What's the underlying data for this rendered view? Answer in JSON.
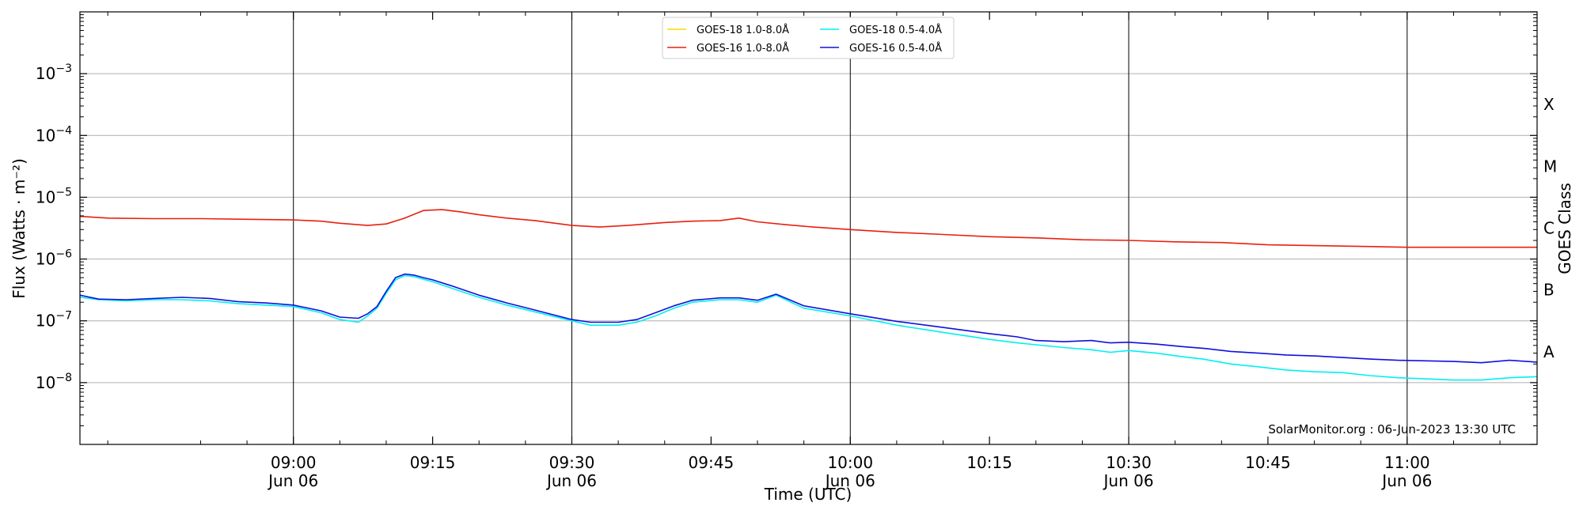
{
  "chart_data": {
    "type": "line",
    "xlabel": "Time (UTC)",
    "ylabel": "Flux (Watts · m⁻²)",
    "ylabel_right": "GOES Class",
    "y_scale": "log",
    "ylim": [
      1e-09,
      0.01
    ],
    "xlim": [
      "2023-06-06 08:37",
      "2023-06-06 11:14"
    ],
    "y_ticks": [
      {
        "value": 1e-08,
        "base": "10",
        "exp": "−8"
      },
      {
        "value": 1e-07,
        "base": "10",
        "exp": "−7"
      },
      {
        "value": 1e-06,
        "base": "10",
        "exp": "−6"
      },
      {
        "value": 1e-05,
        "base": "10",
        "exp": "−5"
      },
      {
        "value": 0.0001,
        "base": "10",
        "exp": "−4"
      },
      {
        "value": 0.001,
        "base": "10",
        "exp": "−3"
      }
    ],
    "x_ticks": [
      {
        "t": "09:00",
        "label": "09:00",
        "sub": "Jun 06",
        "major": true
      },
      {
        "t": "09:15",
        "label": "09:15",
        "sub": "",
        "major": false
      },
      {
        "t": "09:30",
        "label": "09:30",
        "sub": "Jun 06",
        "major": true
      },
      {
        "t": "09:45",
        "label": "09:45",
        "sub": "",
        "major": false
      },
      {
        "t": "10:00",
        "label": "10:00",
        "sub": "Jun 06",
        "major": true
      },
      {
        "t": "10:15",
        "label": "10:15",
        "sub": "",
        "major": false
      },
      {
        "t": "10:30",
        "label": "10:30",
        "sub": "Jun 06",
        "major": true
      },
      {
        "t": "10:45",
        "label": "10:45",
        "sub": "",
        "major": false
      },
      {
        "t": "11:00",
        "label": "11:00",
        "sub": "Jun 06",
        "major": true
      }
    ],
    "goes_classes": [
      {
        "label": "A",
        "value": 3.16e-08
      },
      {
        "label": "B",
        "value": 3.16e-07
      },
      {
        "label": "C",
        "value": 3.16e-06
      },
      {
        "label": "M",
        "value": 3.16e-05
      },
      {
        "label": "X",
        "value": 0.000316
      }
    ],
    "grid": "horizontal at decades; vertical lines at 09:00, 09:30, 10:00, 10:30, 11:00",
    "legend_placement": "top-center",
    "annotation": "SolarMonitor.org : 06-Jun-2023 13:30 UTC",
    "series": [
      {
        "name": "GOES-18 1.0-8.0Å",
        "color": "#ffd700",
        "x": [],
        "y": []
      },
      {
        "name": "GOES-16 1.0-8.0Å",
        "color": "#e8200e",
        "x": [
          "08:37",
          "08:40",
          "08:45",
          "08:50",
          "08:55",
          "09:00",
          "09:03",
          "09:05",
          "09:08",
          "09:10",
          "09:12",
          "09:14",
          "09:16",
          "09:18",
          "09:20",
          "09:23",
          "09:26",
          "09:30",
          "09:33",
          "09:36",
          "09:40",
          "09:43",
          "09:46",
          "09:48",
          "09:50",
          "09:53",
          "09:56",
          "10:00",
          "10:05",
          "10:10",
          "10:15",
          "10:20",
          "10:25",
          "10:30",
          "10:35",
          "10:40",
          "10:45",
          "10:50",
          "10:55",
          "11:00",
          "11:05",
          "11:10",
          "11:14"
        ],
        "y": [
          4.9e-06,
          4.6e-06,
          4.5e-06,
          4.5e-06,
          4.4e-06,
          4.3e-06,
          4.1e-06,
          3.8e-06,
          3.5e-06,
          3.7e-06,
          4.6e-06,
          6.1e-06,
          6.3e-06,
          5.8e-06,
          5.2e-06,
          4.6e-06,
          4.2e-06,
          3.5e-06,
          3.3e-06,
          3.5e-06,
          3.9e-06,
          4.1e-06,
          4.2e-06,
          4.6e-06,
          4e-06,
          3.6e-06,
          3.3e-06,
          3e-06,
          2.7e-06,
          2.5e-06,
          2.3e-06,
          2.2e-06,
          2.05e-06,
          2e-06,
          1.9e-06,
          1.85e-06,
          1.7e-06,
          1.65e-06,
          1.6e-06,
          1.55e-06,
          1.55e-06,
          1.55e-06,
          1.55e-06
        ]
      },
      {
        "name": "GOES-18 0.5-4.0Å",
        "color": "#00f0f0",
        "x": [
          "08:37",
          "08:39",
          "08:42",
          "08:45",
          "08:48",
          "08:51",
          "08:54",
          "08:57",
          "09:00",
          "09:03",
          "09:05",
          "09:07",
          "09:08",
          "09:09",
          "09:10",
          "09:11",
          "09:12",
          "09:13",
          "09:14",
          "09:15",
          "09:17",
          "09:20",
          "09:23",
          "09:26",
          "09:30",
          "09:32",
          "09:35",
          "09:37",
          "09:39",
          "09:41",
          "09:43",
          "09:46",
          "09:48",
          "09:50",
          "09:52",
          "09:55",
          "10:00",
          "10:05",
          "10:10",
          "10:15",
          "10:18",
          "10:20",
          "10:23",
          "10:26",
          "10:28",
          "10:30",
          "10:33",
          "10:36",
          "10:38",
          "10:41",
          "10:44",
          "10:47",
          "10:50",
          "10:53",
          "10:56",
          "10:59",
          "11:02",
          "11:05",
          "11:08",
          "11:11",
          "11:14"
        ],
        "y": [
          2.4e-07,
          2.2e-07,
          2.1e-07,
          2.2e-07,
          2.2e-07,
          2.1e-07,
          1.9e-07,
          1.8e-07,
          1.7e-07,
          1.35e-07,
          1.05e-07,
          9.5e-08,
          1.2e-07,
          1.6e-07,
          2.8e-07,
          4.6e-07,
          5.4e-07,
          5.2e-07,
          4.7e-07,
          4.3e-07,
          3.4e-07,
          2.4e-07,
          1.8e-07,
          1.4e-07,
          1e-07,
          8.5e-08,
          8.5e-08,
          9.5e-08,
          1.2e-07,
          1.6e-07,
          2e-07,
          2.2e-07,
          2.2e-07,
          2e-07,
          2.6e-07,
          1.6e-07,
          1.2e-07,
          8.5e-08,
          6.5e-08,
          5e-08,
          4.4e-08,
          4.1e-08,
          3.7e-08,
          3.4e-08,
          3.1e-08,
          3.3e-08,
          3e-08,
          2.6e-08,
          2.4e-08,
          2e-08,
          1.8e-08,
          1.6e-08,
          1.5e-08,
          1.45e-08,
          1.3e-08,
          1.2e-08,
          1.15e-08,
          1.1e-08,
          1.1e-08,
          1.2e-08,
          1.25e-08
        ]
      },
      {
        "name": "GOES-16 0.5-4.0Å",
        "color": "#1010dd",
        "x": [
          "08:37",
          "08:39",
          "08:42",
          "08:45",
          "08:48",
          "08:51",
          "08:54",
          "08:57",
          "09:00",
          "09:03",
          "09:05",
          "09:07",
          "09:08",
          "09:09",
          "09:10",
          "09:11",
          "09:12",
          "09:13",
          "09:14",
          "09:15",
          "09:17",
          "09:20",
          "09:23",
          "09:26",
          "09:30",
          "09:32",
          "09:35",
          "09:37",
          "09:39",
          "09:41",
          "09:43",
          "09:46",
          "09:48",
          "09:50",
          "09:52",
          "09:55",
          "10:00",
          "10:05",
          "10:10",
          "10:15",
          "10:18",
          "10:20",
          "10:23",
          "10:26",
          "10:28",
          "10:30",
          "10:33",
          "10:36",
          "10:38",
          "10:41",
          "10:44",
          "10:47",
          "10:50",
          "10:53",
          "10:56",
          "10:59",
          "11:02",
          "11:05",
          "11:08",
          "11:11",
          "11:14"
        ],
        "y": [
          2.6e-07,
          2.25e-07,
          2.2e-07,
          2.3e-07,
          2.4e-07,
          2.3e-07,
          2.05e-07,
          1.95e-07,
          1.8e-07,
          1.45e-07,
          1.15e-07,
          1.1e-07,
          1.3e-07,
          1.7e-07,
          3e-07,
          5e-07,
          5.7e-07,
          5.5e-07,
          5e-07,
          4.6e-07,
          3.7e-07,
          2.6e-07,
          1.95e-07,
          1.5e-07,
          1.05e-07,
          9.5e-08,
          9.5e-08,
          1.05e-07,
          1.35e-07,
          1.75e-07,
          2.15e-07,
          2.35e-07,
          2.35e-07,
          2.15e-07,
          2.7e-07,
          1.75e-07,
          1.3e-07,
          9.8e-08,
          7.8e-08,
          6.2e-08,
          5.5e-08,
          4.8e-08,
          4.6e-08,
          4.8e-08,
          4.4e-08,
          4.5e-08,
          4.2e-08,
          3.8e-08,
          3.6e-08,
          3.2e-08,
          3e-08,
          2.8e-08,
          2.7e-08,
          2.55e-08,
          2.4e-08,
          2.3e-08,
          2.25e-08,
          2.2e-08,
          2.1e-08,
          2.3e-08,
          2.15e-08
        ]
      }
    ]
  }
}
